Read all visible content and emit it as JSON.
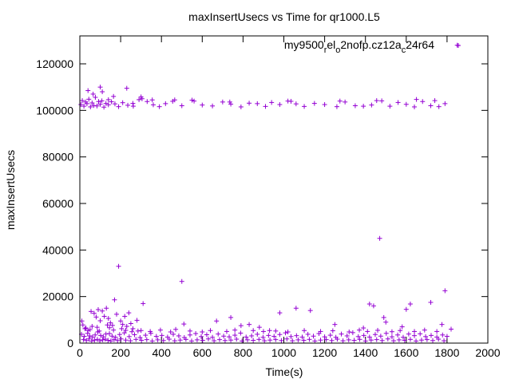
{
  "chart_data": {
    "type": "scatter",
    "title": "maxInsertUsecs vs Time for qr1000.L5",
    "xlabel": "Time(s)",
    "ylabel": "maxInsertUsecs",
    "xlim": [
      0,
      2000
    ],
    "ylim": [
      0,
      132000
    ],
    "x_ticks": [
      0,
      200,
      400,
      600,
      800,
      1000,
      1200,
      1400,
      1600,
      1800,
      2000
    ],
    "y_ticks": [
      0,
      20000,
      40000,
      60000,
      80000,
      100000,
      120000
    ],
    "grid": false,
    "legend_position": "top-right",
    "marker": "plus",
    "color": "#9400d3",
    "series": [
      {
        "name": "my9500relo2nofp.cz12ac24r64",
        "points": [
          [
            5,
            102500
          ],
          [
            12,
            104200
          ],
          [
            20,
            101800
          ],
          [
            28,
            103600
          ],
          [
            35,
            102900
          ],
          [
            44,
            104800
          ],
          [
            52,
            101500
          ],
          [
            60,
            103200
          ],
          [
            68,
            102100
          ],
          [
            76,
            105600
          ],
          [
            84,
            101900
          ],
          [
            92,
            103800
          ],
          [
            100,
            102600
          ],
          [
            108,
            104100
          ],
          [
            118,
            101400
          ],
          [
            128,
            103000
          ],
          [
            140,
            102400
          ],
          [
            155,
            103700
          ],
          [
            172,
            102800
          ],
          [
            190,
            101600
          ],
          [
            210,
            103300
          ],
          [
            235,
            102200
          ],
          [
            262,
            101800
          ],
          [
            290,
            104600
          ],
          [
            305,
            105000
          ],
          [
            330,
            103800
          ],
          [
            360,
            102400
          ],
          [
            390,
            101600
          ],
          [
            420,
            102900
          ],
          [
            455,
            103900
          ],
          [
            465,
            104500
          ],
          [
            500,
            102000
          ],
          [
            550,
            104400
          ],
          [
            600,
            102300
          ],
          [
            650,
            101900
          ],
          [
            700,
            103600
          ],
          [
            740,
            102700
          ],
          [
            790,
            101500
          ],
          [
            830,
            103100
          ],
          [
            870,
            102900
          ],
          [
            910,
            101700
          ],
          [
            940,
            103400
          ],
          [
            980,
            102500
          ],
          [
            1020,
            104000
          ],
          [
            1060,
            102800
          ],
          [
            1100,
            101700
          ],
          [
            1150,
            103000
          ],
          [
            1200,
            102500
          ],
          [
            1260,
            101600
          ],
          [
            1300,
            103600
          ],
          [
            1350,
            102000
          ],
          [
            1390,
            101800
          ],
          [
            1430,
            102300
          ],
          [
            1480,
            104100
          ],
          [
            1520,
            101800
          ],
          [
            1560,
            103400
          ],
          [
            1600,
            102600
          ],
          [
            1640,
            101500
          ],
          [
            1680,
            103800
          ],
          [
            1720,
            102000
          ],
          [
            1760,
            101600
          ],
          [
            1790,
            102900
          ],
          [
            1850,
            128000
          ],
          [
            40,
            108500
          ],
          [
            65,
            107000
          ],
          [
            100,
            110000
          ],
          [
            110,
            108000
          ],
          [
            140,
            104600
          ],
          [
            165,
            106000
          ],
          [
            230,
            109500
          ],
          [
            260,
            103000
          ],
          [
            300,
            105800
          ],
          [
            355,
            104500
          ],
          [
            560,
            104000
          ],
          [
            735,
            103600
          ],
          [
            1035,
            103900
          ],
          [
            1275,
            104000
          ],
          [
            1455,
            104200
          ],
          [
            1650,
            104700
          ],
          [
            1740,
            104200
          ],
          [
            10,
            9500
          ],
          [
            15,
            7800
          ],
          [
            25,
            6200
          ],
          [
            40,
            5400
          ],
          [
            55,
            13600
          ],
          [
            60,
            7200
          ],
          [
            70,
            12800
          ],
          [
            80,
            11200
          ],
          [
            90,
            14400
          ],
          [
            100,
            9600
          ],
          [
            110,
            13800
          ],
          [
            120,
            11500
          ],
          [
            130,
            15000
          ],
          [
            140,
            10600
          ],
          [
            150,
            8700
          ],
          [
            160,
            7600
          ],
          [
            170,
            18600
          ],
          [
            180,
            12400
          ],
          [
            190,
            33000
          ],
          [
            200,
            9500
          ],
          [
            210,
            8000
          ],
          [
            220,
            11500
          ],
          [
            230,
            7200
          ],
          [
            240,
            13000
          ],
          [
            250,
            8400
          ],
          [
            260,
            6200
          ],
          [
            280,
            9800
          ],
          [
            300,
            5400
          ],
          [
            310,
            17000
          ],
          [
            500,
            26500
          ],
          [
            510,
            8200
          ],
          [
            670,
            9500
          ],
          [
            740,
            11000
          ],
          [
            790,
            7500
          ],
          [
            830,
            8000
          ],
          [
            880,
            6800
          ],
          [
            930,
            5400
          ],
          [
            980,
            13000
          ],
          [
            1060,
            15000
          ],
          [
            1130,
            14000
          ],
          [
            1250,
            8000
          ],
          [
            1390,
            6500
          ],
          [
            1420,
            16800
          ],
          [
            1440,
            16000
          ],
          [
            1470,
            45000
          ],
          [
            1490,
            11000
          ],
          [
            1500,
            9000
          ],
          [
            1580,
            7000
          ],
          [
            1600,
            14500
          ],
          [
            1620,
            16800
          ],
          [
            1720,
            17500
          ],
          [
            1790,
            22500
          ],
          [
            1775,
            8000
          ],
          [
            1820,
            6000
          ],
          [
            8,
            3800
          ],
          [
            22,
            2900
          ],
          [
            38,
            4200
          ],
          [
            48,
            3100
          ],
          [
            62,
            2600
          ],
          [
            75,
            3500
          ],
          [
            88,
            4800
          ],
          [
            102,
            3300
          ],
          [
            115,
            2700
          ],
          [
            128,
            3900
          ],
          [
            145,
            4100
          ],
          [
            158,
            3000
          ],
          [
            175,
            2500
          ],
          [
            195,
            3700
          ],
          [
            218,
            4400
          ],
          [
            242,
            2800
          ],
          [
            268,
            3600
          ],
          [
            295,
            2400
          ],
          [
            322,
            3400
          ],
          [
            348,
            4200
          ],
          [
            375,
            2900
          ],
          [
            402,
            3300
          ],
          [
            430,
            2600
          ],
          [
            458,
            3800
          ],
          [
            485,
            3100
          ],
          [
            512,
            2400
          ],
          [
            540,
            3500
          ],
          [
            568,
            4100
          ],
          [
            595,
            2800
          ],
          [
            622,
            3600
          ],
          [
            650,
            2500
          ],
          [
            678,
            3900
          ],
          [
            705,
            3000
          ],
          [
            732,
            2700
          ],
          [
            760,
            3400
          ],
          [
            788,
            4300
          ],
          [
            815,
            2600
          ],
          [
            842,
            3100
          ],
          [
            870,
            3800
          ],
          [
            898,
            2500
          ],
          [
            925,
            3300
          ],
          [
            952,
            2900
          ],
          [
            980,
            3700
          ],
          [
            1008,
            4400
          ],
          [
            1035,
            2800
          ],
          [
            1062,
            3200
          ],
          [
            1090,
            2600
          ],
          [
            1118,
            3800
          ],
          [
            1145,
            3000
          ],
          [
            1172,
            4100
          ],
          [
            1200,
            2700
          ],
          [
            1228,
            3400
          ],
          [
            1255,
            2500
          ],
          [
            1282,
            3900
          ],
          [
            1310,
            3100
          ],
          [
            1338,
            4500
          ],
          [
            1365,
            2800
          ],
          [
            1392,
            3300
          ],
          [
            1420,
            2600
          ],
          [
            1448,
            3700
          ],
          [
            1475,
            3000
          ],
          [
            1502,
            4200
          ],
          [
            1530,
            2700
          ],
          [
            1558,
            3500
          ],
          [
            1585,
            2500
          ],
          [
            1612,
            3900
          ],
          [
            1640,
            3200
          ],
          [
            1668,
            4000
          ],
          [
            1695,
            2800
          ],
          [
            1722,
            3300
          ],
          [
            1750,
            2600
          ],
          [
            1778,
            3500
          ],
          [
            1800,
            2900
          ],
          [
            18,
            1500
          ],
          [
            32,
            1100
          ],
          [
            45,
            1800
          ],
          [
            58,
            900
          ],
          [
            72,
            1300
          ],
          [
            86,
            1600
          ],
          [
            98,
            1000
          ],
          [
            112,
            1400
          ],
          [
            125,
            1700
          ],
          [
            138,
            1200
          ],
          [
            152,
            900
          ],
          [
            168,
            1500
          ],
          [
            185,
            1100
          ],
          [
            202,
            1800
          ],
          [
            225,
            1300
          ],
          [
            248,
            1000
          ],
          [
            275,
            1600
          ],
          [
            302,
            1200
          ],
          [
            328,
            1500
          ],
          [
            355,
            900
          ],
          [
            382,
            1400
          ],
          [
            410,
            1100
          ],
          [
            438,
            1700
          ],
          [
            465,
            1000
          ],
          [
            492,
            1300
          ],
          [
            520,
            1600
          ],
          [
            548,
            900
          ],
          [
            575,
            1400
          ],
          [
            602,
            1200
          ],
          [
            630,
            1800
          ],
          [
            658,
            1000
          ],
          [
            685,
            1500
          ],
          [
            712,
            1100
          ],
          [
            740,
            1300
          ],
          [
            768,
            1700
          ],
          [
            795,
            900
          ],
          [
            822,
            1400
          ],
          [
            850,
            1200
          ],
          [
            878,
            1600
          ],
          [
            905,
            1000
          ],
          [
            932,
            1300
          ],
          [
            960,
            1500
          ],
          [
            988,
            1100
          ],
          [
            1015,
            1800
          ],
          [
            1042,
            1000
          ],
          [
            1070,
            1400
          ],
          [
            1098,
            1200
          ],
          [
            1125,
            1600
          ],
          [
            1152,
            900
          ],
          [
            1180,
            1300
          ],
          [
            1208,
            1500
          ],
          [
            1235,
            1100
          ],
          [
            1262,
            1700
          ],
          [
            1290,
            1000
          ],
          [
            1318,
            1400
          ],
          [
            1345,
            1200
          ],
          [
            1372,
            1600
          ],
          [
            1400,
            900
          ],
          [
            1428,
            1300
          ],
          [
            1455,
            1500
          ],
          [
            1482,
            1100
          ],
          [
            1510,
            1800
          ],
          [
            1538,
            1000
          ],
          [
            1565,
            1400
          ],
          [
            1592,
            1200
          ],
          [
            1620,
            1600
          ],
          [
            1648,
            900
          ],
          [
            1675,
            1300
          ],
          [
            1702,
            1500
          ],
          [
            1730,
            1100
          ],
          [
            1758,
            1700
          ],
          [
            1785,
            1000
          ],
          [
            30,
            6500
          ],
          [
            50,
            5800
          ],
          [
            85,
            6800
          ],
          [
            95,
            5200
          ],
          [
            135,
            7800
          ],
          [
            145,
            6600
          ],
          [
            165,
            5600
          ],
          [
            205,
            6200
          ],
          [
            225,
            5500
          ],
          [
            255,
            4900
          ],
          [
            285,
            5200
          ],
          [
            345,
            5000
          ],
          [
            395,
            5600
          ],
          [
            445,
            4800
          ],
          [
            470,
            5900
          ],
          [
            540,
            5200
          ],
          [
            600,
            4800
          ],
          [
            640,
            5400
          ],
          [
            720,
            5000
          ],
          [
            760,
            5600
          ],
          [
            850,
            5400
          ],
          [
            900,
            5000
          ],
          [
            960,
            5200
          ],
          [
            1020,
            4800
          ],
          [
            1100,
            5400
          ],
          [
            1180,
            5000
          ],
          [
            1240,
            5300
          ],
          [
            1320,
            4800
          ],
          [
            1370,
            5600
          ],
          [
            1410,
            5000
          ],
          [
            1460,
            5500
          ],
          [
            1530,
            4900
          ],
          [
            1570,
            5400
          ],
          [
            1640,
            5000
          ],
          [
            1690,
            5600
          ],
          [
            1750,
            5000
          ]
        ]
      }
    ]
  }
}
